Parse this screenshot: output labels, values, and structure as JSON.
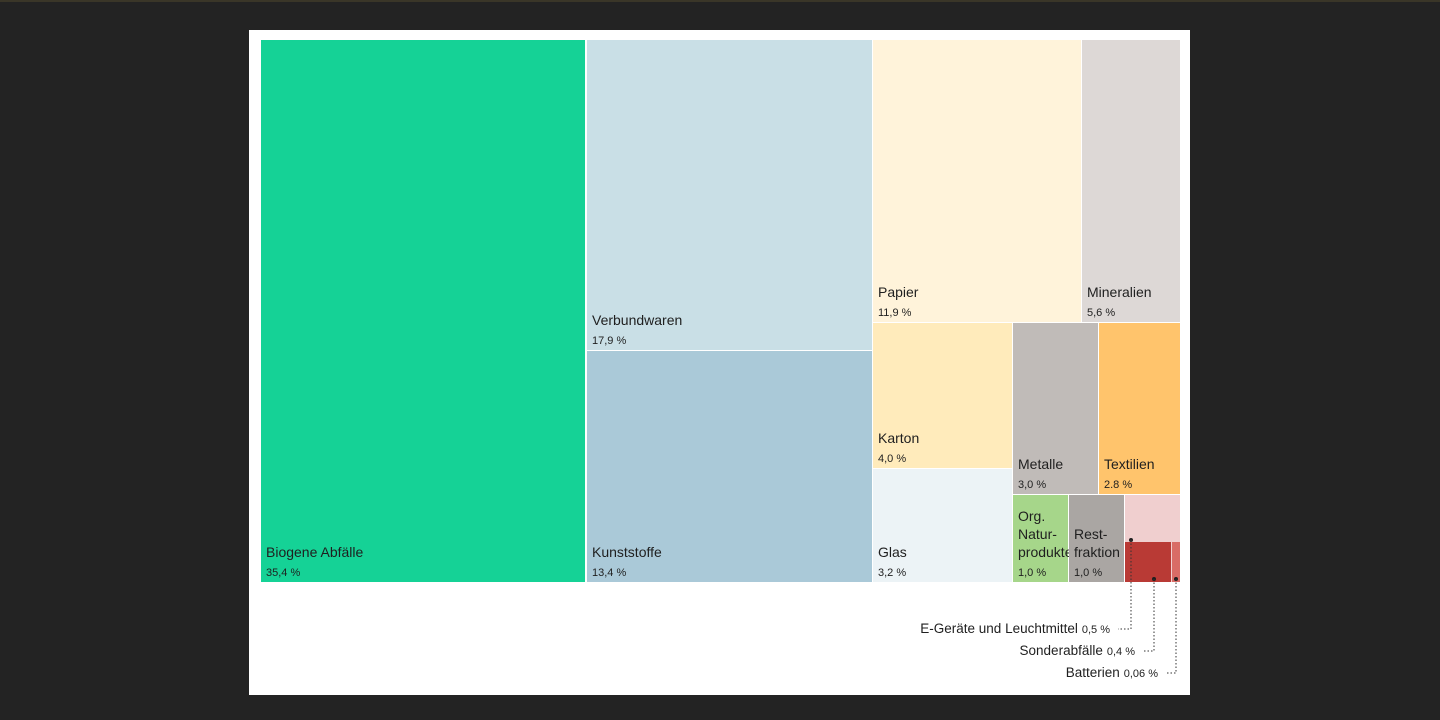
{
  "chart_data": {
    "type": "treemap",
    "title": "",
    "series": [
      {
        "name": "Biogene Abfälle",
        "value": 35.4,
        "label": "35,4 %",
        "color": "#15d296"
      },
      {
        "name": "Verbundwaren",
        "value": 17.9,
        "label": "17,9 %",
        "color": "#c9dfe6"
      },
      {
        "name": "Kunststoffe",
        "value": 13.4,
        "label": "13,4 %",
        "color": "#aac9d8"
      },
      {
        "name": "Papier",
        "value": 11.9,
        "label": "11,9 %",
        "color": "#fff3da"
      },
      {
        "name": "Mineralien",
        "value": 5.6,
        "label": "5,6 %",
        "color": "#ddd8d6"
      },
      {
        "name": "Karton",
        "value": 4.0,
        "label": "4,0 %",
        "color": "#ffebbb"
      },
      {
        "name": "Glas",
        "value": 3.2,
        "label": "3,2 %",
        "color": "#ecf3f6"
      },
      {
        "name": "Metalle",
        "value": 3.0,
        "label": "3,0 %",
        "color": "#c0bbb8"
      },
      {
        "name": "Textilien",
        "value": 2.8,
        "label": "2.8 %",
        "color": "#ffc46c"
      },
      {
        "name": "Org. Natur-produkte",
        "lines": [
          "Org.",
          "Natur-",
          "produkte"
        ],
        "value": 1.0,
        "label": "1,0 %",
        "color": "#a6d68a"
      },
      {
        "name": "Rest-fraktion",
        "lines": [
          "Rest-",
          "fraktion"
        ],
        "value": 1.0,
        "label": "1,0 %",
        "color": "#aaa6a3"
      },
      {
        "name": "E-Geräte und Leuchtmittel",
        "value": 0.5,
        "label": "0,5 %",
        "color": "#f0cfcf"
      },
      {
        "name": "Sonderabfälle",
        "value": 0.4,
        "label": "0,4 %",
        "color": "#b93a35"
      },
      {
        "name": "Batterien",
        "value": 0.06,
        "label": "0,06 %",
        "color": "#d96c66"
      }
    ]
  }
}
